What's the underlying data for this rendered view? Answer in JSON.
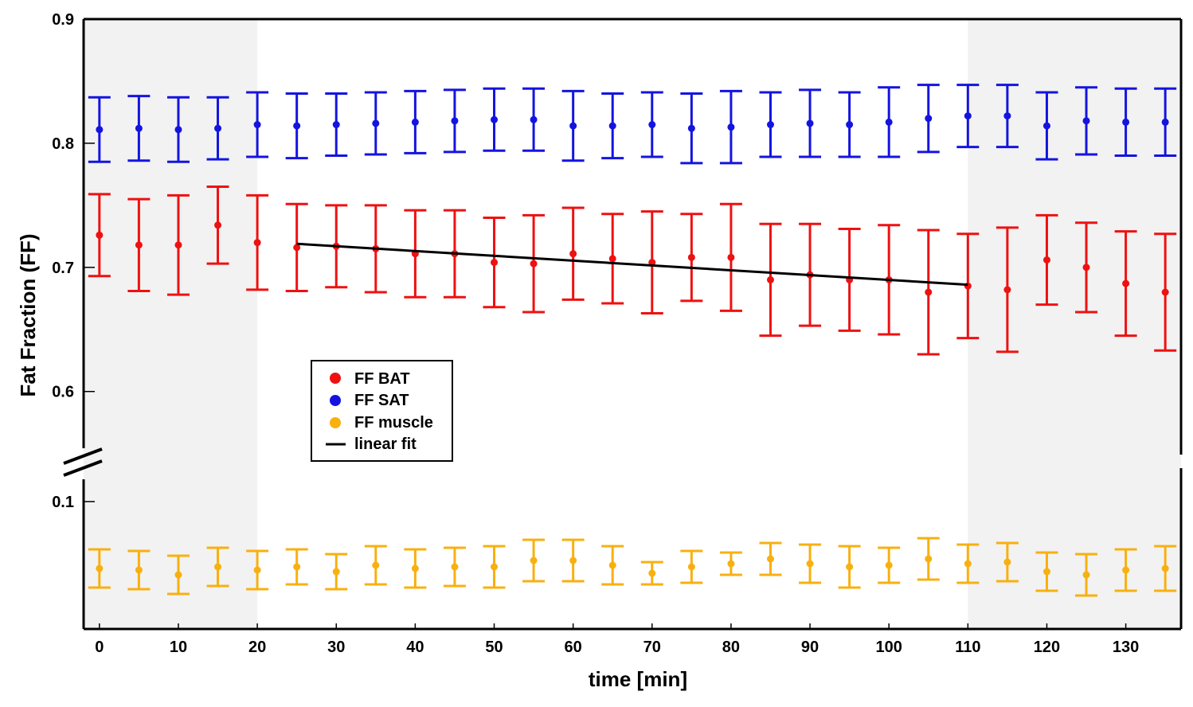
{
  "chart_data": {
    "type": "scatter",
    "title": "",
    "xlabel": "time [min]",
    "ylabel": "Fat Fraction (FF)",
    "xlim": [
      -2,
      137
    ],
    "x_ticks": [
      0,
      10,
      20,
      30,
      40,
      50,
      60,
      70,
      80,
      90,
      100,
      110,
      120,
      130
    ],
    "y_ticks_upper": [
      "0.9",
      "0.8",
      "0.7",
      "0.6"
    ],
    "y_ticks_lower": [
      "0.1"
    ],
    "ylim_upper": [
      0.553,
      0.9
    ],
    "ylim_lower": [
      0.02,
      0.115
    ],
    "axis_break": true,
    "shaded_x_ranges": [
      [
        -2,
        20
      ],
      [
        110,
        137
      ]
    ],
    "x": [
      0,
      5,
      10,
      15,
      20,
      25,
      30,
      35,
      40,
      45,
      50,
      55,
      60,
      65,
      70,
      75,
      80,
      85,
      90,
      95,
      100,
      105,
      110,
      115,
      120,
      125,
      130,
      135
    ],
    "series": [
      {
        "name": "FF BAT",
        "color": "#ee1111",
        "values": [
          0.726,
          0.718,
          0.718,
          0.734,
          0.72,
          0.716,
          0.717,
          0.715,
          0.711,
          0.711,
          0.704,
          0.703,
          0.711,
          0.707,
          0.704,
          0.708,
          0.708,
          0.69,
          0.694,
          0.69,
          0.69,
          0.68,
          0.685,
          0.682,
          0.706,
          0.7,
          0.687,
          0.68
        ],
        "errors": [
          0.033,
          0.037,
          0.04,
          0.031,
          0.038,
          0.035,
          0.033,
          0.035,
          0.035,
          0.035,
          0.036,
          0.039,
          0.037,
          0.036,
          0.041,
          0.035,
          0.043,
          0.045,
          0.041,
          0.041,
          0.044,
          0.05,
          0.042,
          0.05,
          0.036,
          0.036,
          0.042,
          0.047
        ]
      },
      {
        "name": "FF SAT",
        "color": "#1414e0",
        "values": [
          0.811,
          0.812,
          0.811,
          0.812,
          0.815,
          0.814,
          0.815,
          0.816,
          0.817,
          0.818,
          0.819,
          0.819,
          0.814,
          0.814,
          0.815,
          0.812,
          0.813,
          0.815,
          0.816,
          0.815,
          0.817,
          0.82,
          0.822,
          0.822,
          0.814,
          0.818,
          0.817,
          0.817
        ],
        "errors": [
          0.026,
          0.026,
          0.026,
          0.025,
          0.026,
          0.026,
          0.025,
          0.025,
          0.025,
          0.025,
          0.025,
          0.025,
          0.028,
          0.026,
          0.026,
          0.028,
          0.029,
          0.026,
          0.027,
          0.026,
          0.028,
          0.027,
          0.025,
          0.025,
          0.027,
          0.027,
          0.027,
          0.027
        ]
      },
      {
        "name": "FF muscle",
        "color": "#f8b010",
        "values": [
          0.058,
          0.057,
          0.054,
          0.059,
          0.057,
          0.059,
          0.056,
          0.06,
          0.058,
          0.059,
          0.059,
          0.063,
          0.063,
          0.06,
          0.055,
          0.059,
          0.061,
          0.064,
          0.061,
          0.059,
          0.06,
          0.064,
          0.061,
          0.062,
          0.056,
          0.054,
          0.057,
          0.058
        ],
        "errors": [
          0.012,
          0.012,
          0.012,
          0.012,
          0.012,
          0.011,
          0.011,
          0.012,
          0.012,
          0.012,
          0.013,
          0.013,
          0.013,
          0.012,
          0.007,
          0.01,
          0.007,
          0.01,
          0.012,
          0.013,
          0.011,
          0.013,
          0.012,
          0.012,
          0.012,
          0.013,
          0.013,
          0.014
        ]
      }
    ],
    "linear_fit": {
      "name": "linear fit",
      "color": "#000000",
      "x": [
        25,
        110
      ],
      "y": [
        0.719,
        0.686
      ]
    },
    "legend": {
      "position": "center-left",
      "entries": [
        "FF BAT",
        "FF SAT",
        "FF muscle",
        "linear fit"
      ]
    }
  }
}
